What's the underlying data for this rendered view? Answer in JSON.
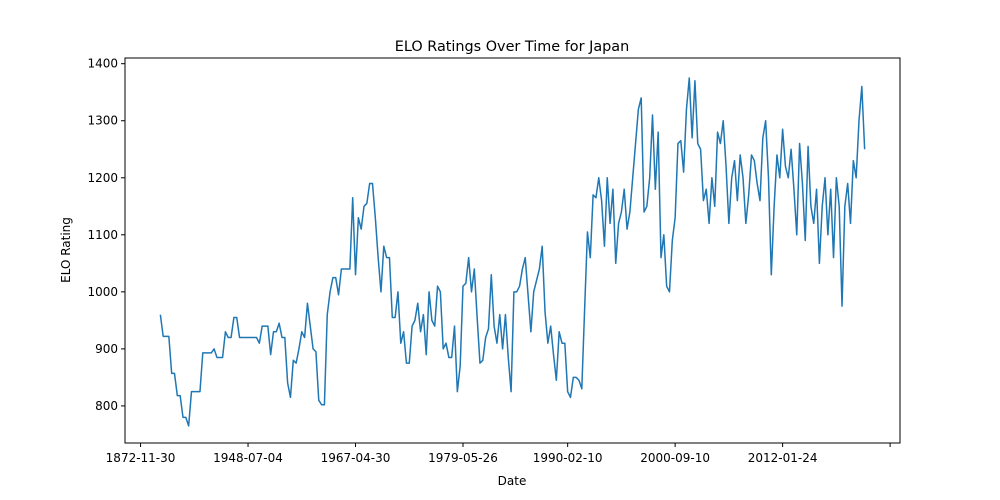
{
  "chart_data": {
    "type": "line",
    "title": "ELO Ratings Over Time for Japan",
    "xlabel": "Date",
    "ylabel": "ELO Rating",
    "color": "#1f77b4",
    "values": [
      960,
      922,
      922,
      922,
      857,
      857,
      818,
      818,
      780,
      780,
      765,
      825,
      825,
      825,
      825,
      893,
      893,
      893,
      893,
      900,
      885,
      885,
      885,
      930,
      920,
      920,
      955,
      955,
      920,
      920,
      920,
      920,
      920,
      920,
      920,
      910,
      940,
      940,
      940,
      890,
      930,
      930,
      945,
      920,
      920,
      840,
      815,
      880,
      875,
      900,
      930,
      920,
      980,
      940,
      900,
      895,
      810,
      802,
      802,
      960,
      1000,
      1025,
      1025,
      995,
      1040,
      1040,
      1040,
      1040,
      1165,
      1030,
      1130,
      1110,
      1150,
      1155,
      1190,
      1190,
      1130,
      1060,
      1000,
      1080,
      1060,
      1060,
      955,
      955,
      1000,
      910,
      930,
      875,
      875,
      940,
      950,
      980,
      930,
      960,
      890,
      1000,
      950,
      940,
      1010,
      1000,
      900,
      910,
      885,
      885,
      940,
      825,
      870,
      1010,
      1015,
      1060,
      1000,
      1040,
      955,
      875,
      880,
      920,
      935,
      1030,
      940,
      910,
      960,
      900,
      960,
      885,
      825,
      1000,
      1000,
      1010,
      1040,
      1060,
      995,
      930,
      1000,
      1020,
      1040,
      1080,
      965,
      910,
      940,
      890,
      845,
      930,
      910,
      910,
      825,
      815,
      850,
      850,
      845,
      830,
      970,
      1105,
      1060,
      1170,
      1165,
      1200,
      1160,
      1080,
      1200,
      1120,
      1180,
      1050,
      1120,
      1140,
      1180,
      1110,
      1140,
      1200,
      1260,
      1320,
      1340,
      1140,
      1150,
      1200,
      1310,
      1180,
      1280,
      1060,
      1100,
      1010,
      1000,
      1090,
      1130,
      1260,
      1265,
      1210,
      1320,
      1375,
      1270,
      1370,
      1260,
      1250,
      1160,
      1180,
      1120,
      1200,
      1150,
      1280,
      1260,
      1300,
      1220,
      1120,
      1200,
      1230,
      1160,
      1240,
      1200,
      1120,
      1170,
      1240,
      1230,
      1190,
      1160,
      1270,
      1300,
      1200,
      1030,
      1150,
      1240,
      1200,
      1285,
      1220,
      1200,
      1250,
      1180,
      1100,
      1260,
      1190,
      1090,
      1255,
      1150,
      1120,
      1180,
      1050,
      1150,
      1200,
      1100,
      1180,
      1060,
      1200,
      1150,
      975,
      1150,
      1190,
      1120,
      1230,
      1200,
      1300,
      1360,
      1250
    ],
    "xlim": [
      -12.5,
      261.5
    ],
    "xticks": [
      {
        "value": -7,
        "label": "1872-11-30"
      },
      {
        "value": 31,
        "label": "1948-07-04"
      },
      {
        "value": 69,
        "label": "1967-04-30"
      },
      {
        "value": 107,
        "label": "1979-05-26"
      },
      {
        "value": 144,
        "label": "1990-02-10"
      },
      {
        "value": 182,
        "label": "2000-09-10"
      },
      {
        "value": 220,
        "label": "2012-01-24"
      },
      {
        "value": 258,
        "label": null
      }
    ],
    "ylim": [
      735,
      1410
    ],
    "yticks": [
      800,
      900,
      1000,
      1100,
      1200,
      1300,
      1400
    ]
  }
}
